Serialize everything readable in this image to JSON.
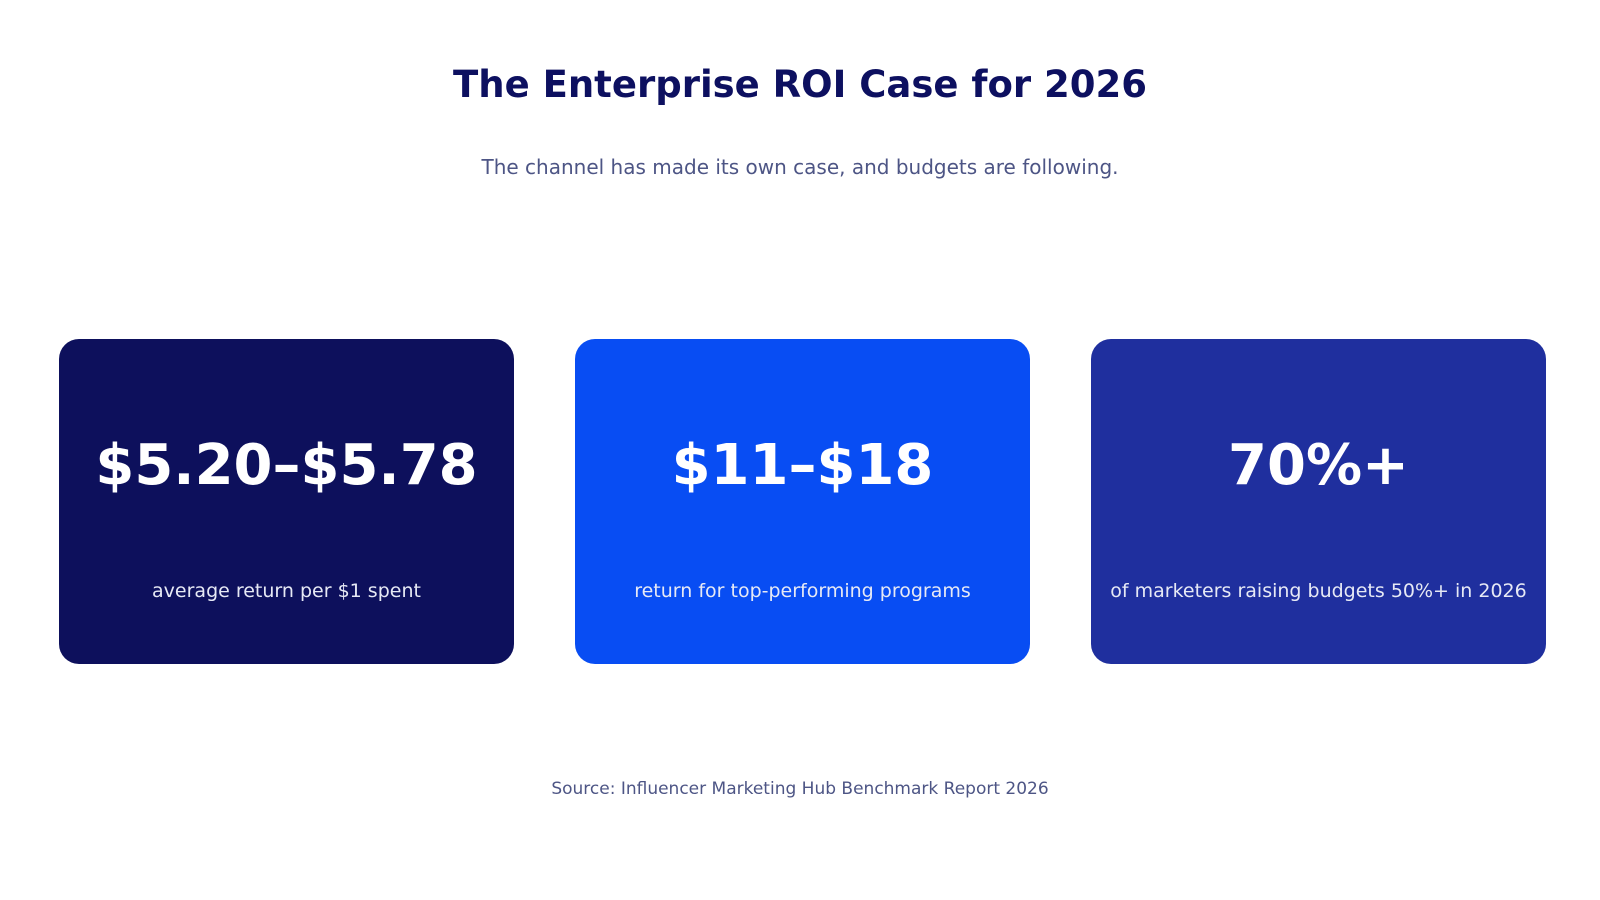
{
  "header": {
    "title": "The Enterprise ROI Case for 2026",
    "subtitle": "The channel has made its own case, and budgets are following."
  },
  "cards": [
    {
      "value": "$5.20–$5.78",
      "label": "average return per $1 spent",
      "color": "#0d105c"
    },
    {
      "value": "$11–$18",
      "label": "return for top-performing programs",
      "color": "#084df3"
    },
    {
      "value": "70%+",
      "label": "of marketers raising budgets 50%+ in 2026",
      "color": "#1f2f9e"
    }
  ],
  "footer": {
    "source": "Source: Influencer Marketing Hub Benchmark Report 2026"
  },
  "colors": {
    "title": "#0d1060",
    "muted_text": "#4d5585",
    "background": "#ffffff"
  }
}
